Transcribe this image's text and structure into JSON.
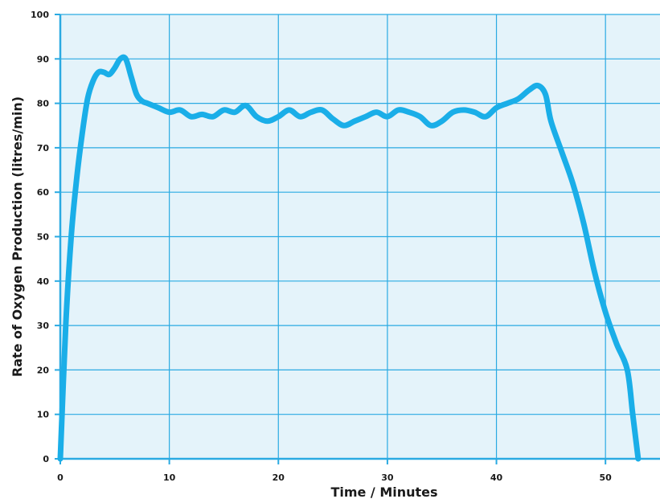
{
  "chart_data": {
    "type": "line",
    "title": "",
    "xlabel": "Time / Minutes",
    "ylabel": "Rate of Oxygen Production (litres/min)",
    "xlim": [
      0,
      55
    ],
    "ylim": [
      0,
      100
    ],
    "x_ticks": [
      0,
      10,
      20,
      30,
      40,
      50
    ],
    "y_ticks": [
      0,
      10,
      20,
      30,
      40,
      50,
      60,
      70,
      80,
      90,
      100
    ],
    "grid": true,
    "legend": "none",
    "colors": {
      "background": "#e4f3fa",
      "grid": "#2aaae2",
      "axis": "#2aaae2",
      "line": "#1aaee8"
    },
    "series": [
      {
        "x": [
          0,
          0.5,
          1,
          1.5,
          2,
          2.5,
          3,
          3.5,
          4,
          4.5,
          5,
          5.5,
          6,
          6.5,
          7,
          7.5,
          8,
          9,
          10,
          11,
          12,
          13,
          14,
          15,
          16,
          17,
          18,
          19,
          20,
          21,
          22,
          23,
          24,
          25,
          26,
          27,
          28,
          29,
          30,
          31,
          32,
          33,
          34,
          35,
          36,
          37,
          38,
          39,
          40,
          41,
          42,
          43,
          43.8,
          44.5,
          45,
          46,
          47,
          48,
          49,
          50,
          51,
          52,
          52.5,
          53
        ],
        "y": [
          0,
          30,
          50,
          63,
          73,
          81,
          85,
          87,
          87,
          86.5,
          88,
          90,
          90,
          86,
          82,
          80.5,
          80,
          79,
          78,
          78.5,
          77,
          77.5,
          77,
          78.5,
          78,
          79.5,
          77,
          76,
          77,
          78.5,
          77,
          78,
          78.5,
          76.5,
          75,
          76,
          77,
          78,
          77,
          78.5,
          78,
          77,
          75,
          76,
          78,
          78.5,
          78,
          77,
          79,
          80,
          81,
          83,
          84,
          82,
          76,
          69,
          62,
          53,
          42,
          33,
          26,
          20,
          10,
          0
        ]
      }
    ]
  }
}
